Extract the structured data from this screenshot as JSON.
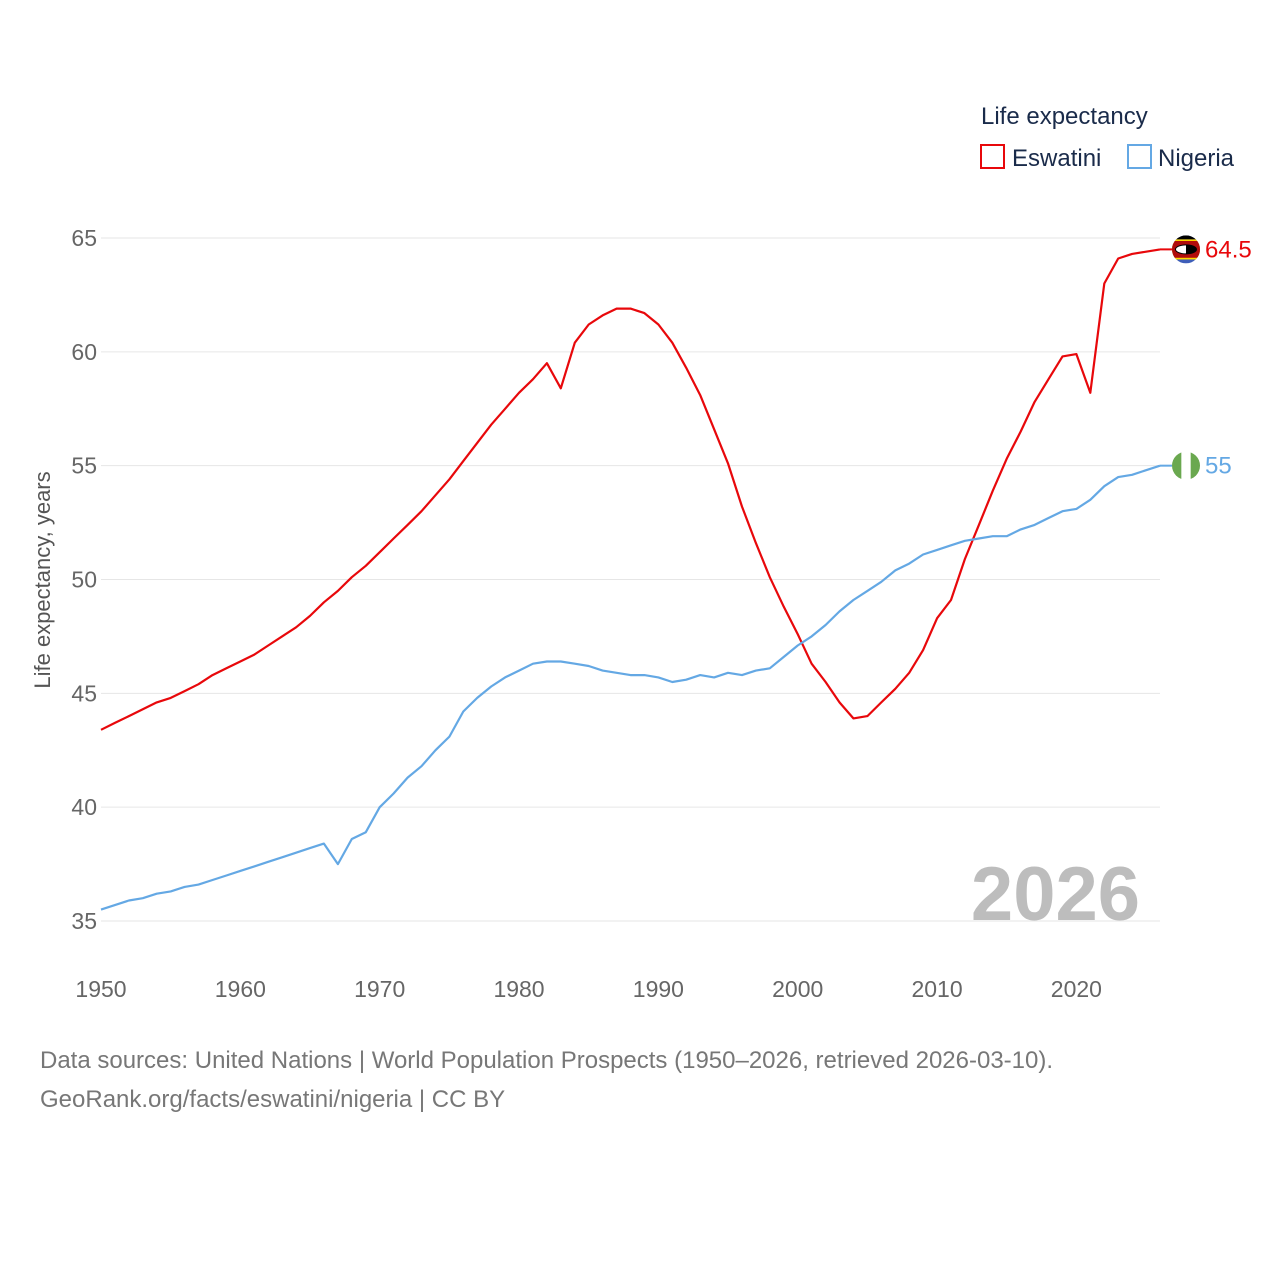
{
  "chart_data": {
    "type": "line",
    "ylabel": "Life expectancy, years",
    "xlim": [
      1950,
      2026
    ],
    "ylim": [
      35,
      65
    ],
    "xticks": [
      1950,
      1960,
      1970,
      1980,
      1990,
      2000,
      2010,
      2020
    ],
    "yticks": [
      35,
      40,
      45,
      50,
      55,
      60,
      65
    ],
    "grid": true,
    "legend": {
      "title": "Life expectancy",
      "placement": "top-right"
    },
    "year_label": "2026",
    "x": [
      1950,
      1951,
      1952,
      1953,
      1954,
      1955,
      1956,
      1957,
      1958,
      1959,
      1960,
      1961,
      1962,
      1963,
      1964,
      1965,
      1966,
      1967,
      1968,
      1969,
      1970,
      1971,
      1972,
      1973,
      1974,
      1975,
      1976,
      1977,
      1978,
      1979,
      1980,
      1981,
      1982,
      1983,
      1984,
      1985,
      1986,
      1987,
      1988,
      1989,
      1990,
      1991,
      1992,
      1993,
      1994,
      1995,
      1996,
      1997,
      1998,
      1999,
      2000,
      2001,
      2002,
      2003,
      2004,
      2005,
      2006,
      2007,
      2008,
      2009,
      2010,
      2011,
      2012,
      2013,
      2014,
      2015,
      2016,
      2017,
      2018,
      2019,
      2020,
      2021,
      2022,
      2023,
      2024,
      2025,
      2026
    ],
    "series": [
      {
        "name": "Eswatini",
        "color": "#e8080b",
        "end_label": "64.5",
        "flag": "eswatini-flag-icon",
        "values": [
          43.4,
          43.7,
          44.0,
          44.3,
          44.6,
          44.8,
          45.1,
          45.4,
          45.8,
          46.1,
          46.4,
          46.7,
          47.1,
          47.5,
          47.9,
          48.4,
          49.0,
          49.5,
          50.1,
          50.6,
          51.2,
          51.8,
          52.4,
          53.0,
          53.7,
          54.4,
          55.2,
          56.0,
          56.8,
          57.5,
          58.2,
          58.8,
          59.5,
          58.4,
          60.4,
          61.2,
          61.6,
          61.9,
          61.9,
          61.7,
          61.2,
          60.4,
          59.3,
          58.1,
          56.6,
          55.1,
          53.2,
          51.6,
          50.1,
          48.8,
          47.6,
          46.3,
          45.5,
          44.6,
          43.9,
          44.0,
          44.6,
          45.2,
          45.9,
          46.9,
          48.3,
          49.1,
          50.9,
          52.4,
          53.9,
          55.3,
          56.5,
          57.8,
          58.8,
          59.8,
          59.9,
          58.2,
          63.0,
          64.1,
          64.3,
          64.4,
          64.5
        ]
      },
      {
        "name": "Nigeria",
        "color": "#64a8e4",
        "end_label": "55",
        "flag": "nigeria-flag-icon",
        "values": [
          35.5,
          35.7,
          35.9,
          36.0,
          36.2,
          36.3,
          36.5,
          36.6,
          36.8,
          37.0,
          37.2,
          37.4,
          37.6,
          37.8,
          38.0,
          38.2,
          38.4,
          37.5,
          38.6,
          38.9,
          40.0,
          40.6,
          41.3,
          41.8,
          42.5,
          43.1,
          44.2,
          44.8,
          45.3,
          45.7,
          46.0,
          46.3,
          46.4,
          46.4,
          46.3,
          46.2,
          46.0,
          45.9,
          45.8,
          45.8,
          45.7,
          45.5,
          45.6,
          45.8,
          45.7,
          45.9,
          45.8,
          46.0,
          46.1,
          46.6,
          47.1,
          47.5,
          48.0,
          48.6,
          49.1,
          49.5,
          49.9,
          50.4,
          50.7,
          51.1,
          51.3,
          51.5,
          51.7,
          51.8,
          51.9,
          51.9,
          52.2,
          52.4,
          52.7,
          53.0,
          53.1,
          53.5,
          54.1,
          54.5,
          54.6,
          54.8,
          55.0
        ]
      }
    ]
  },
  "sources": {
    "line1": "Data sources: United Nations | World Population Prospects (1950–2026, retrieved 2026-03-10).",
    "line2": "GeoRank.org/facts/eswatini/nigeria | CC BY"
  }
}
